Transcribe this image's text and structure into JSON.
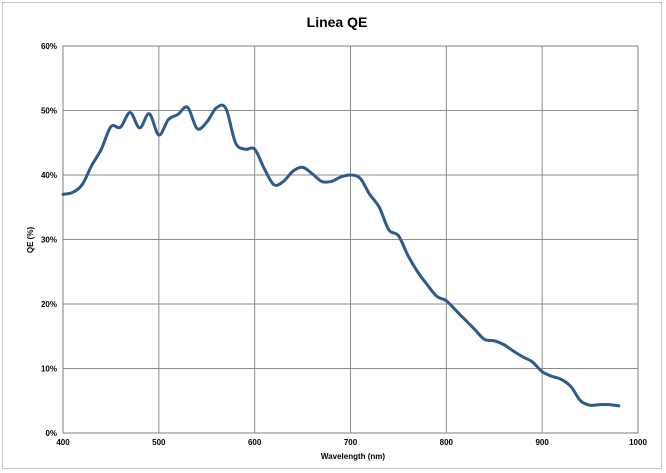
{
  "chart_data": {
    "type": "line",
    "title": "Linea QE",
    "xlabel": "Wavelength (nm)",
    "ylabel": "QE (%)",
    "xlim": [
      400,
      1000
    ],
    "ylim": [
      0,
      60
    ],
    "x_ticks": [
      "400",
      "500",
      "600",
      "700",
      "800",
      "900",
      "1000"
    ],
    "y_ticks": [
      "0%",
      "10%",
      "20%",
      "30%",
      "40%",
      "50%",
      "60%"
    ],
    "grid": true,
    "legend": "none",
    "colors": {
      "line": "#2e5a8c",
      "grid": "#8c8c8c",
      "axis": "#7f7f7f"
    },
    "series": [
      {
        "x": [
          400,
          410,
          420,
          430,
          440,
          450,
          460,
          470,
          480,
          490,
          500,
          510,
          520,
          530,
          540,
          550,
          560,
          570,
          580,
          590,
          600,
          610,
          620,
          630,
          640,
          650,
          660,
          670,
          680,
          690,
          700,
          710,
          720,
          730,
          740,
          750,
          760,
          770,
          780,
          790,
          800,
          810,
          820,
          830,
          840,
          850,
          860,
          870,
          880,
          890,
          900,
          910,
          920,
          930,
          940,
          950,
          960,
          970,
          980
        ],
        "y": [
          37.0,
          37.3,
          38.5,
          41.5,
          44.0,
          47.5,
          47.4,
          49.7,
          47.3,
          49.5,
          46.2,
          48.6,
          49.4,
          50.5,
          47.2,
          48.2,
          50.4,
          50.3,
          45.0,
          44.0,
          44.0,
          41.0,
          38.5,
          39.0,
          40.6,
          41.2,
          40.2,
          39.0,
          39.0,
          39.7,
          40.0,
          39.5,
          37.0,
          35.0,
          31.5,
          30.6,
          27.5,
          25.0,
          23.0,
          21.2,
          20.5,
          19.0,
          17.5,
          16.0,
          14.5,
          14.3,
          13.7,
          12.7,
          11.8,
          11.0,
          9.5,
          8.8,
          8.3,
          7.2,
          5.0,
          4.3,
          4.4,
          4.4,
          4.2
        ]
      }
    ]
  }
}
